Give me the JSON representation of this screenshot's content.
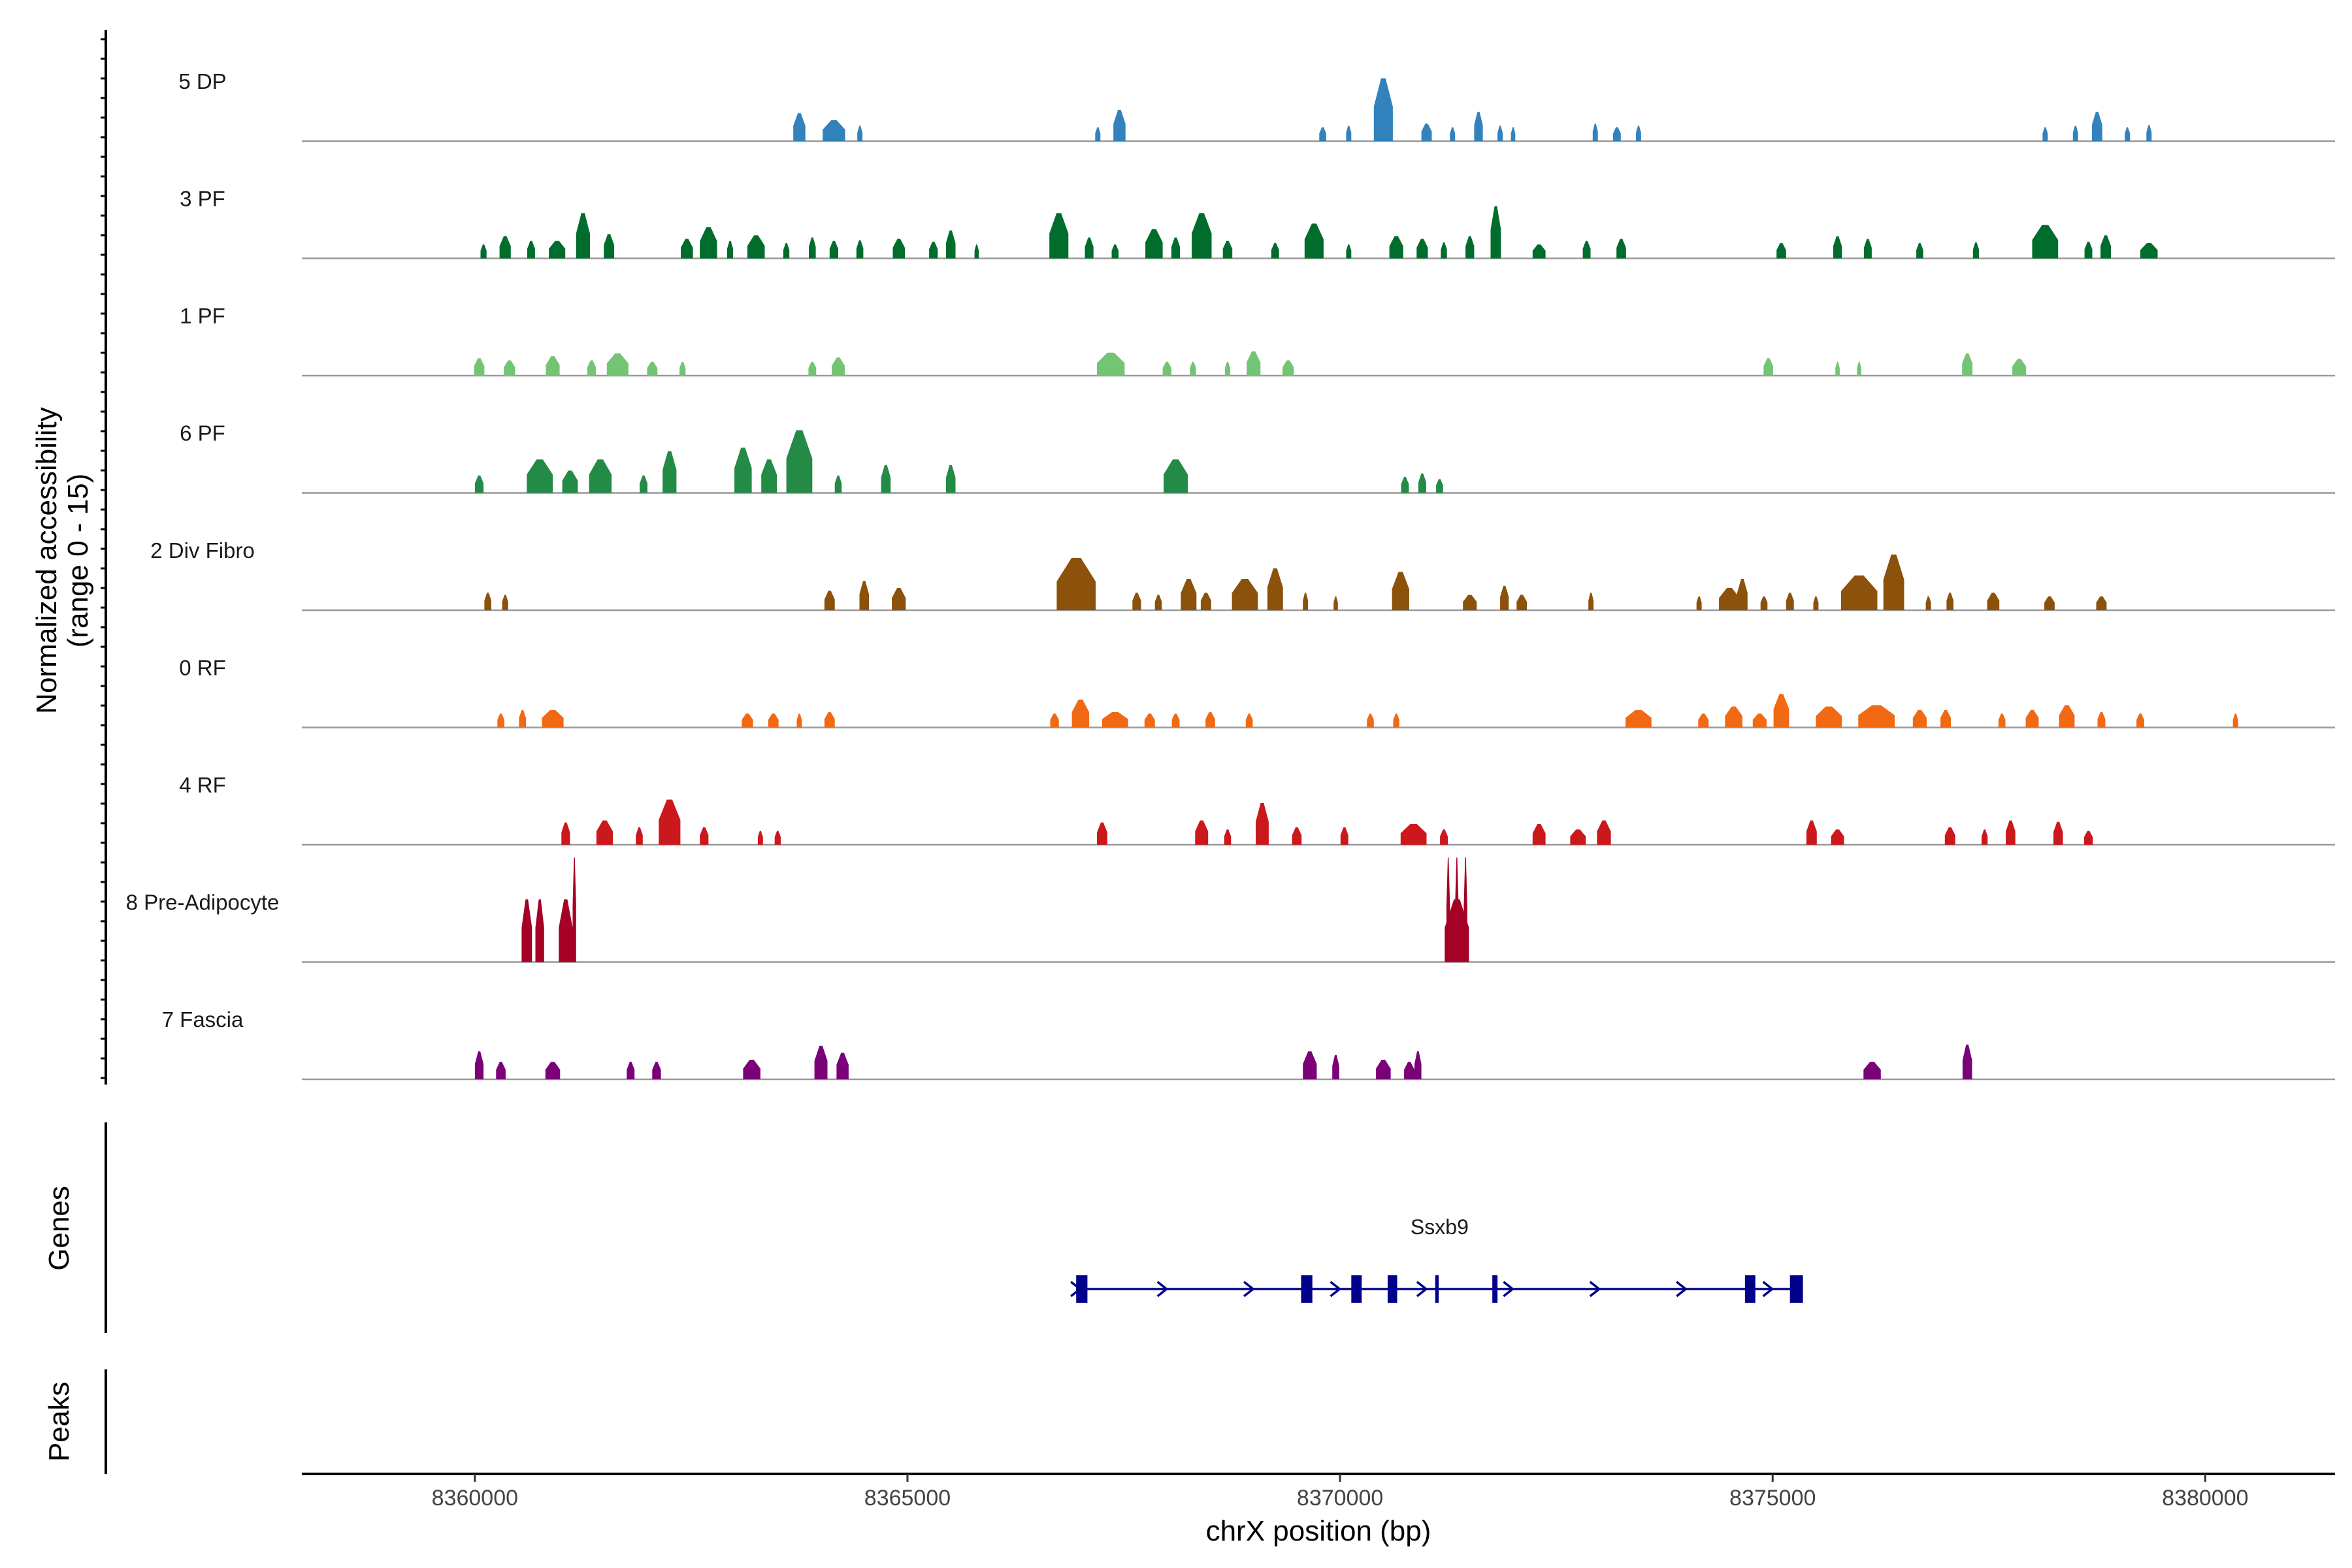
{
  "chart_data": {
    "type": "area",
    "title": "",
    "xlabel": "chrX position (bp)",
    "ylabel": "Normalized accessibility (range 0 - 15)",
    "xlim": [
      8358000,
      8381500
    ],
    "ylim": [
      0,
      15
    ],
    "x_ticks": [
      8360000,
      8365000,
      8370000,
      8375000,
      8380000
    ],
    "x_tick_labels": [
      "8360000",
      "8365000",
      "8370000",
      "8375000",
      "8380000"
    ],
    "panel_titles": {
      "genes": "Genes",
      "peaks": "Peaks"
    },
    "tracks": [
      {
        "name": "5 DP",
        "color": "#3182bd",
        "peaks": [
          [
            8363750,
            140,
            4.0
          ],
          [
            8364150,
            260,
            3.0
          ],
          [
            8364450,
            60,
            2.2
          ],
          [
            8367200,
            60,
            2.0
          ],
          [
            8367450,
            140,
            4.5
          ],
          [
            8369800,
            80,
            2.0
          ],
          [
            8370100,
            60,
            2.2
          ],
          [
            8370500,
            220,
            9.0
          ],
          [
            8371000,
            120,
            2.5
          ],
          [
            8371300,
            60,
            2.0
          ],
          [
            8371600,
            100,
            4.2
          ],
          [
            8371850,
            60,
            2.2
          ],
          [
            8372000,
            50,
            2.0
          ],
          [
            8372950,
            60,
            2.5
          ],
          [
            8373200,
            90,
            2.0
          ],
          [
            8373450,
            60,
            2.2
          ],
          [
            8378150,
            60,
            2.0
          ],
          [
            8378500,
            60,
            2.2
          ],
          [
            8378750,
            120,
            4.2
          ],
          [
            8379100,
            60,
            2.0
          ],
          [
            8379350,
            60,
            2.3
          ]
        ]
      },
      {
        "name": "3 PF",
        "color": "#006d2c",
        "peaks": [
          [
            8360100,
            70,
            2.0
          ],
          [
            8360350,
            130,
            3.2
          ],
          [
            8360650,
            90,
            2.5
          ],
          [
            8360950,
            190,
            2.5
          ],
          [
            8361250,
            160,
            6.5
          ],
          [
            8361550,
            120,
            3.5
          ],
          [
            8362450,
            140,
            2.8
          ],
          [
            8362700,
            200,
            4.5
          ],
          [
            8362950,
            70,
            2.5
          ],
          [
            8363250,
            200,
            3.3
          ],
          [
            8363600,
            70,
            2.2
          ],
          [
            8363900,
            80,
            3.0
          ],
          [
            8364150,
            100,
            2.5
          ],
          [
            8364450,
            80,
            2.6
          ],
          [
            8364900,
            140,
            2.8
          ],
          [
            8365300,
            100,
            2.4
          ],
          [
            8365500,
            110,
            4.0
          ],
          [
            8365800,
            50,
            2.0
          ],
          [
            8366750,
            220,
            6.5
          ],
          [
            8367100,
            100,
            3.0
          ],
          [
            8367400,
            80,
            2.0
          ],
          [
            8367850,
            200,
            4.2
          ],
          [
            8368100,
            100,
            3.0
          ],
          [
            8368400,
            230,
            6.5
          ],
          [
            8368700,
            110,
            2.5
          ],
          [
            8369250,
            90,
            2.2
          ],
          [
            8369700,
            220,
            5.0
          ],
          [
            8370100,
            60,
            2.0
          ],
          [
            8370650,
            160,
            3.2
          ],
          [
            8370950,
            130,
            2.8
          ],
          [
            8371200,
            70,
            2.3
          ],
          [
            8371500,
            100,
            3.2
          ],
          [
            8371800,
            120,
            7.5
          ],
          [
            8372300,
            150,
            2.0
          ],
          [
            8372850,
            90,
            2.5
          ],
          [
            8373250,
            110,
            2.8
          ],
          [
            8375100,
            110,
            2.2
          ],
          [
            8375750,
            100,
            3.2
          ],
          [
            8376100,
            90,
            2.8
          ],
          [
            8376700,
            80,
            2.2
          ],
          [
            8377350,
            70,
            2.3
          ],
          [
            8378150,
            300,
            4.8
          ],
          [
            8378650,
            90,
            2.4
          ],
          [
            8378850,
            120,
            3.3
          ],
          [
            8379350,
            200,
            2.2
          ]
        ]
      },
      {
        "name": "1 PF",
        "color": "#74c476",
        "peaks": [
          [
            8360050,
            120,
            2.5
          ],
          [
            8360400,
            130,
            2.2
          ],
          [
            8360900,
            160,
            2.8
          ],
          [
            8361350,
            100,
            2.2
          ],
          [
            8361650,
            250,
            3.2
          ],
          [
            8362050,
            120,
            2.0
          ],
          [
            8362400,
            70,
            2.0
          ],
          [
            8363900,
            90,
            2.0
          ],
          [
            8364200,
            150,
            2.6
          ],
          [
            8367350,
            320,
            3.3
          ],
          [
            8368000,
            100,
            2.0
          ],
          [
            8368300,
            70,
            2.0
          ],
          [
            8368700,
            60,
            2.0
          ],
          [
            8369000,
            160,
            3.5
          ],
          [
            8369400,
            130,
            2.2
          ],
          [
            8374950,
            110,
            2.5
          ],
          [
            8375750,
            50,
            2.0
          ],
          [
            8376000,
            50,
            2.0
          ],
          [
            8377250,
            120,
            3.2
          ],
          [
            8377850,
            160,
            2.4
          ]
        ]
      },
      {
        "name": "6 PF",
        "color": "#238b45",
        "peaks": [
          [
            8360050,
            100,
            2.5
          ],
          [
            8360750,
            300,
            4.8
          ],
          [
            8361100,
            180,
            3.2
          ],
          [
            8361450,
            260,
            4.8
          ],
          [
            8361950,
            90,
            2.5
          ],
          [
            8362250,
            160,
            6.0
          ],
          [
            8363100,
            200,
            6.5
          ],
          [
            8363400,
            180,
            4.8
          ],
          [
            8363750,
            300,
            9.0
          ],
          [
            8364200,
            80,
            2.5
          ],
          [
            8364750,
            110,
            4.0
          ],
          [
            8365500,
            110,
            4.0
          ],
          [
            8368100,
            280,
            4.8
          ],
          [
            8370750,
            90,
            2.3
          ],
          [
            8370950,
            90,
            2.8
          ],
          [
            8371150,
            80,
            2.0
          ]
        ]
      },
      {
        "name": "2 Div Fibro",
        "color": "#8c510a",
        "peaks": [
          [
            8360150,
            80,
            2.5
          ],
          [
            8360350,
            70,
            2.2
          ],
          [
            8364100,
            120,
            2.8
          ],
          [
            8364500,
            110,
            4.2
          ],
          [
            8364900,
            160,
            3.2
          ],
          [
            8366950,
            450,
            7.5
          ],
          [
            8367650,
            100,
            2.5
          ],
          [
            8367900,
            80,
            2.2
          ],
          [
            8368250,
            180,
            4.5
          ],
          [
            8368450,
            120,
            2.5
          ],
          [
            8368900,
            300,
            4.5
          ],
          [
            8369250,
            180,
            6.0
          ],
          [
            8369600,
            60,
            2.5
          ],
          [
            8369950,
            50,
            2.0
          ],
          [
            8370700,
            200,
            5.5
          ],
          [
            8371500,
            160,
            2.2
          ],
          [
            8371900,
            100,
            3.5
          ],
          [
            8372100,
            120,
            2.2
          ],
          [
            8372900,
            60,
            2.5
          ],
          [
            8374150,
            60,
            2.0
          ],
          [
            8374500,
            240,
            3.2
          ],
          [
            8374650,
            120,
            4.5
          ],
          [
            8374900,
            80,
            2.0
          ],
          [
            8375200,
            90,
            2.5
          ],
          [
            8375500,
            60,
            2.0
          ],
          [
            8376000,
            420,
            5.0
          ],
          [
            8376400,
            240,
            8.0
          ],
          [
            8376800,
            60,
            2.0
          ],
          [
            8377050,
            80,
            2.5
          ],
          [
            8377550,
            140,
            2.5
          ],
          [
            8378200,
            120,
            2.0
          ],
          [
            8378800,
            120,
            2.0
          ]
        ]
      },
      {
        "name": "0 RF",
        "color": "#f16913",
        "peaks": [
          [
            8360300,
            80,
            2.0
          ],
          [
            8360550,
            80,
            2.5
          ],
          [
            8360900,
            250,
            2.5
          ],
          [
            8363150,
            130,
            2.0
          ],
          [
            8363450,
            120,
            2.0
          ],
          [
            8363750,
            60,
            2.0
          ],
          [
            8364100,
            120,
            2.2
          ],
          [
            8366700,
            100,
            2.0
          ],
          [
            8367000,
            200,
            4.0
          ],
          [
            8367400,
            300,
            2.2
          ],
          [
            8367800,
            120,
            2.0
          ],
          [
            8368100,
            90,
            2.0
          ],
          [
            8368500,
            110,
            2.2
          ],
          [
            8368950,
            80,
            2.0
          ],
          [
            8370350,
            80,
            2.0
          ],
          [
            8370650,
            70,
            2.0
          ],
          [
            8373450,
            300,
            2.5
          ],
          [
            8374200,
            120,
            2.0
          ],
          [
            8374550,
            200,
            3.0
          ],
          [
            8374850,
            160,
            2.0
          ],
          [
            8375100,
            180,
            4.8
          ],
          [
            8375650,
            300,
            3.0
          ],
          [
            8376200,
            420,
            3.2
          ],
          [
            8376700,
            160,
            2.5
          ],
          [
            8377000,
            120,
            2.5
          ],
          [
            8377650,
            80,
            2.0
          ],
          [
            8378000,
            150,
            2.5
          ],
          [
            8378400,
            180,
            3.2
          ],
          [
            8378800,
            90,
            2.2
          ],
          [
            8379250,
            90,
            2.0
          ],
          [
            8380350,
            60,
            2.0
          ]
        ]
      },
      {
        "name": "4 RF",
        "color": "#cb181d",
        "peaks": [
          [
            8361050,
            100,
            3.2
          ],
          [
            8361500,
            190,
            3.5
          ],
          [
            8361900,
            80,
            2.5
          ],
          [
            8362250,
            250,
            6.5
          ],
          [
            8362650,
            100,
            2.5
          ],
          [
            8363300,
            60,
            2.0
          ],
          [
            8363500,
            70,
            2.0
          ],
          [
            8367250,
            120,
            3.2
          ],
          [
            8368400,
            150,
            3.5
          ],
          [
            8368700,
            80,
            2.2
          ],
          [
            8369100,
            150,
            6.0
          ],
          [
            8369500,
            110,
            2.5
          ],
          [
            8370050,
            90,
            2.5
          ],
          [
            8370850,
            300,
            3.0
          ],
          [
            8371200,
            90,
            2.2
          ],
          [
            8372300,
            150,
            3.0
          ],
          [
            8372750,
            180,
            2.2
          ],
          [
            8373050,
            160,
            3.5
          ],
          [
            8375450,
            120,
            3.5
          ],
          [
            8375750,
            150,
            2.2
          ],
          [
            8377050,
            120,
            2.5
          ],
          [
            8377450,
            70,
            2.2
          ],
          [
            8377750,
            110,
            3.5
          ],
          [
            8378300,
            110,
            3.3
          ],
          [
            8378650,
            100,
            2.0
          ]
        ]
      },
      {
        "name": "8 Pre-Adipocyte",
        "color": "#a50026",
        "peaks": [
          [
            8360600,
            120,
            9.0
          ],
          [
            8360750,
            100,
            9.0
          ],
          [
            8361050,
            160,
            9.0
          ],
          [
            8361150,
            40,
            15.0
          ],
          [
            8371250,
            40,
            15.0
          ],
          [
            8371350,
            40,
            15.0
          ],
          [
            8371450,
            40,
            15.0
          ],
          [
            8371350,
            280,
            9.0
          ]
        ]
      },
      {
        "name": "7 Fascia",
        "color": "#7a0177",
        "peaks": [
          [
            8360050,
            100,
            4.0
          ],
          [
            8360300,
            110,
            2.5
          ],
          [
            8360900,
            170,
            2.5
          ],
          [
            8361800,
            90,
            2.5
          ],
          [
            8362100,
            100,
            2.5
          ],
          [
            8363200,
            200,
            2.8
          ],
          [
            8364000,
            150,
            4.8
          ],
          [
            8364250,
            140,
            3.8
          ],
          [
            8369650,
            160,
            4.0
          ],
          [
            8369950,
            80,
            3.5
          ],
          [
            8370500,
            170,
            2.8
          ],
          [
            8370800,
            120,
            2.5
          ],
          [
            8370900,
            80,
            4.0
          ],
          [
            8376150,
            200,
            2.5
          ],
          [
            8377250,
            110,
            5.0
          ]
        ]
      }
    ],
    "gene": {
      "name": "Ssxb9",
      "start": 8366950,
      "end": 8375350,
      "strand": "+",
      "exons": [
        [
          8366950,
          8367080
        ],
        [
          8369550,
          8369680
        ],
        [
          8370130,
          8370250
        ],
        [
          8370550,
          8370660
        ],
        [
          8371100,
          8371140
        ],
        [
          8371760,
          8371820
        ],
        [
          8374680,
          8374800
        ],
        [
          8375200,
          8375350
        ]
      ]
    }
  }
}
